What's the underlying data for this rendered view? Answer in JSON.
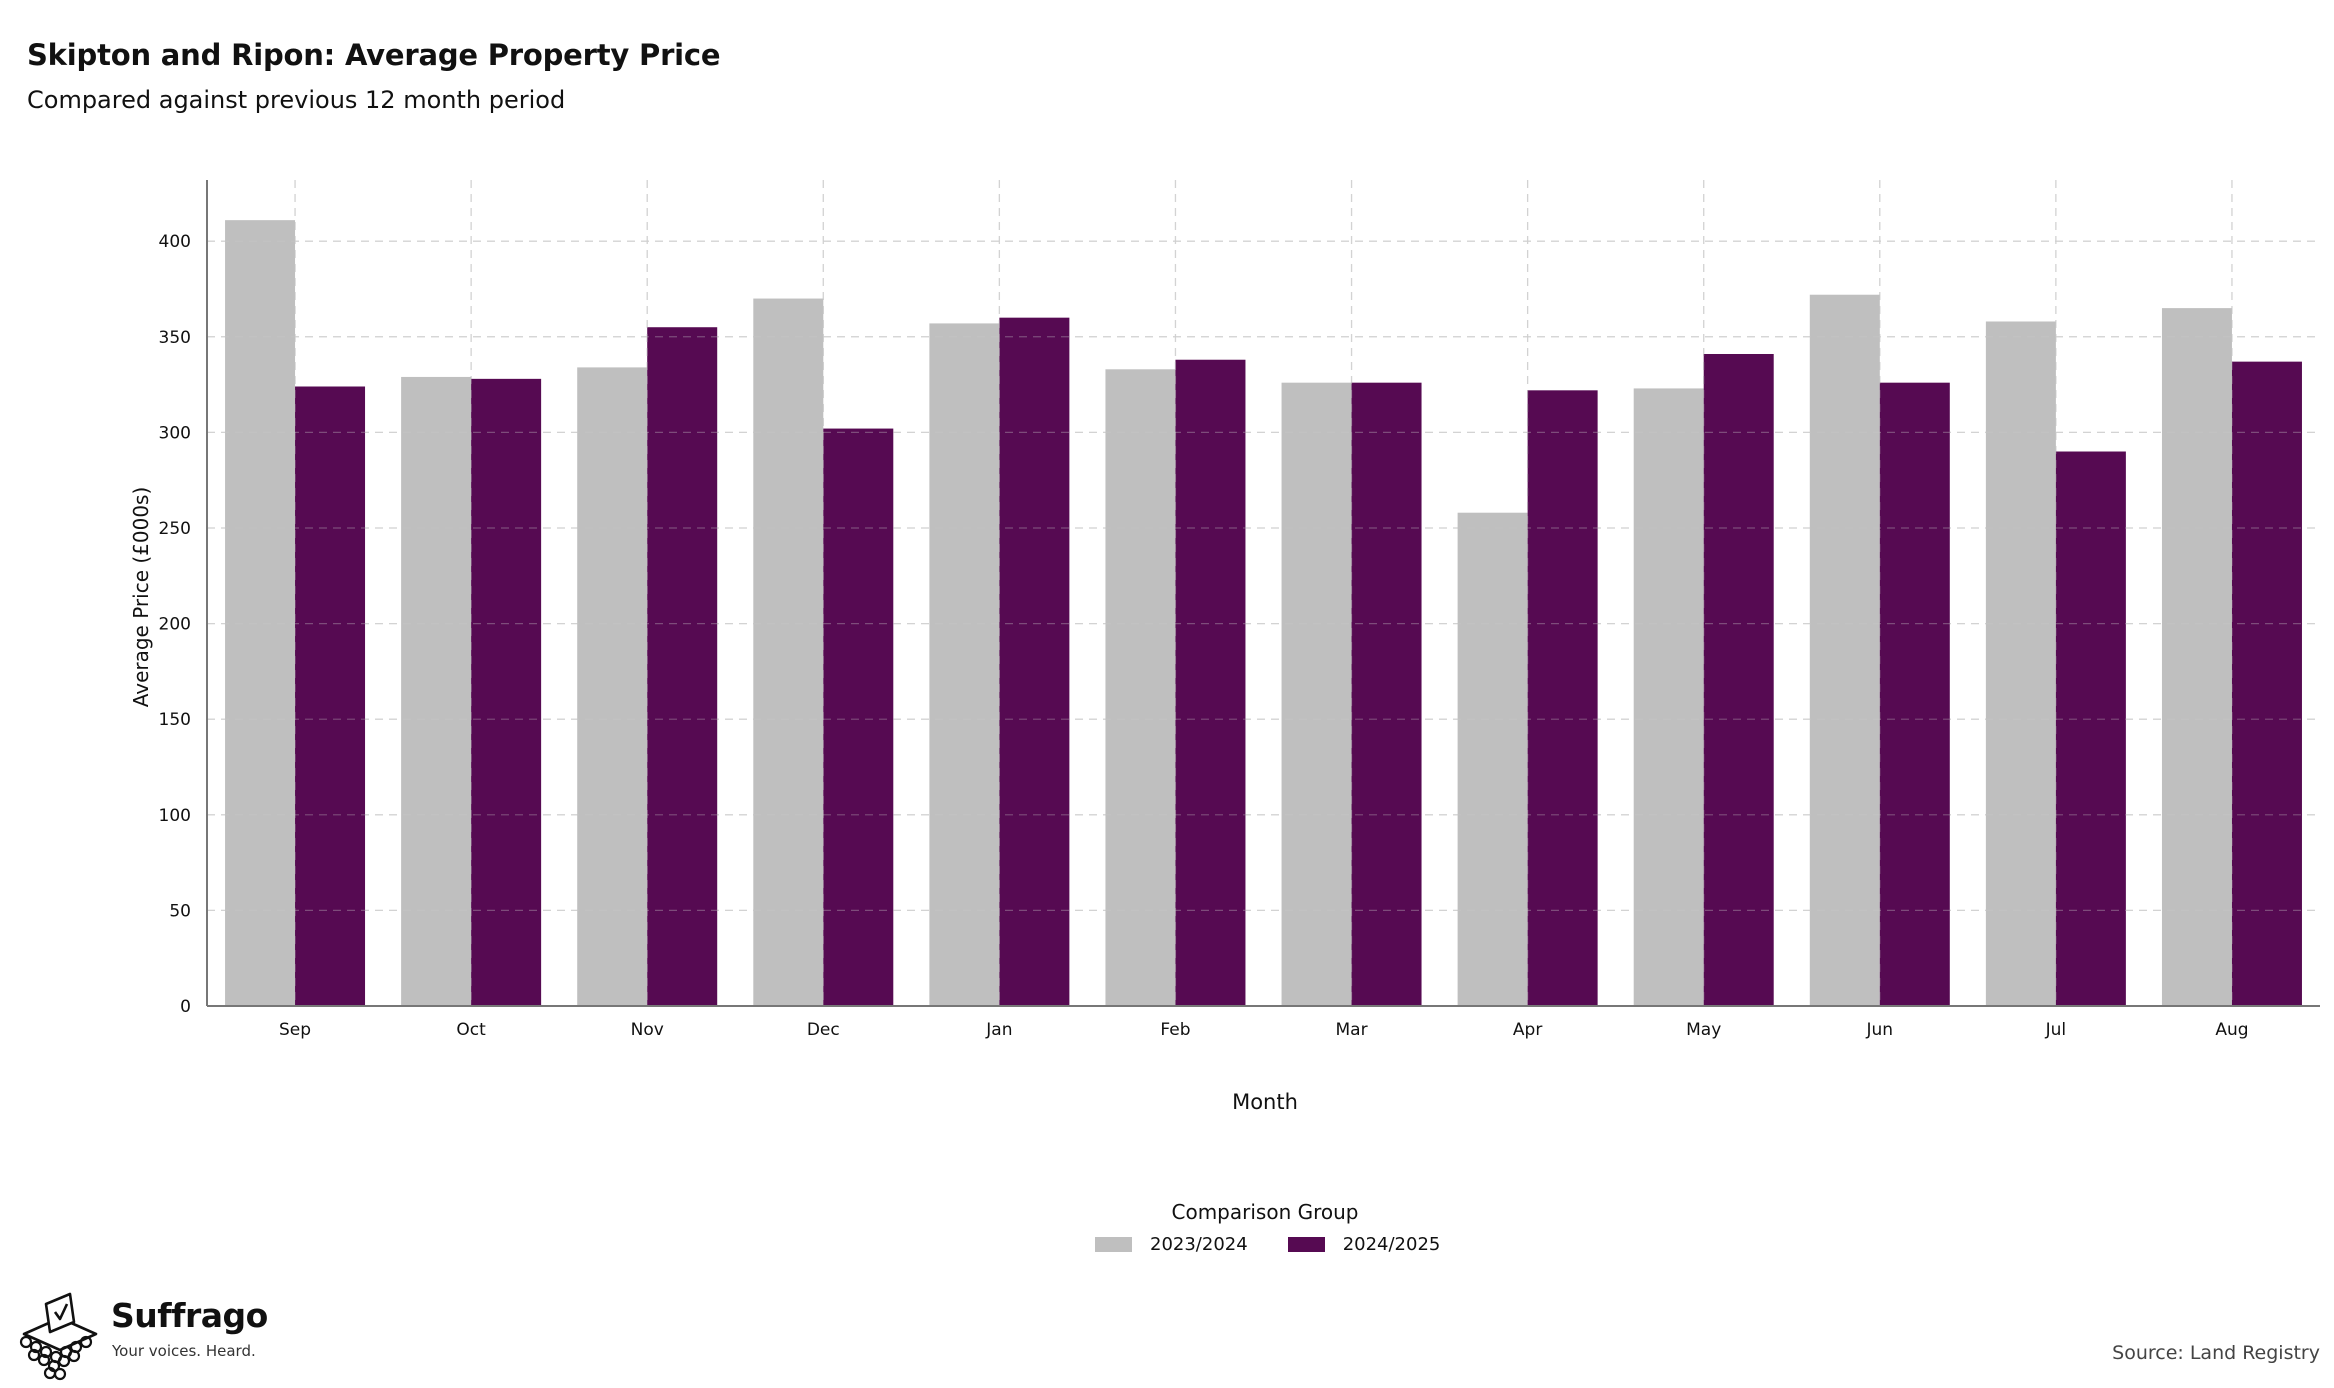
{
  "header": {
    "title": "Skipton and Ripon: Average Property Price",
    "subtitle": "Compared against previous 12 month period"
  },
  "chart_data": {
    "type": "bar",
    "title": "Skipton and Ripon: Average Property Price",
    "subtitle": "Compared against previous 12 month period",
    "xlabel": "Month",
    "ylabel": "Average Price (£000s)",
    "ylim": [
      0,
      432
    ],
    "yticks": [
      0,
      50,
      100,
      150,
      200,
      250,
      300,
      350,
      400
    ],
    "grid": true,
    "categories": [
      "Sep",
      "Oct",
      "Nov",
      "Dec",
      "Jan",
      "Feb",
      "Mar",
      "Apr",
      "May",
      "Jun",
      "Jul",
      "Aug"
    ],
    "series": [
      {
        "name": "2023/2024",
        "color": "#bfbfbf",
        "values": [
          411,
          329,
          334,
          370,
          357,
          333,
          326,
          258,
          323,
          372,
          358,
          365
        ]
      },
      {
        "name": "2024/2025",
        "color": "#560a52",
        "values": [
          324,
          328,
          355,
          302,
          360,
          338,
          326,
          322,
          341,
          326,
          290,
          337
        ]
      }
    ],
    "legend": {
      "title": "Comparison Group",
      "position": "bottom-center"
    }
  },
  "footer": {
    "brand": "Suffrago",
    "tagline": "Your voices. Heard.",
    "source": "Source: Land Registry"
  },
  "icons": {
    "logo": "ballot-box-icon"
  }
}
